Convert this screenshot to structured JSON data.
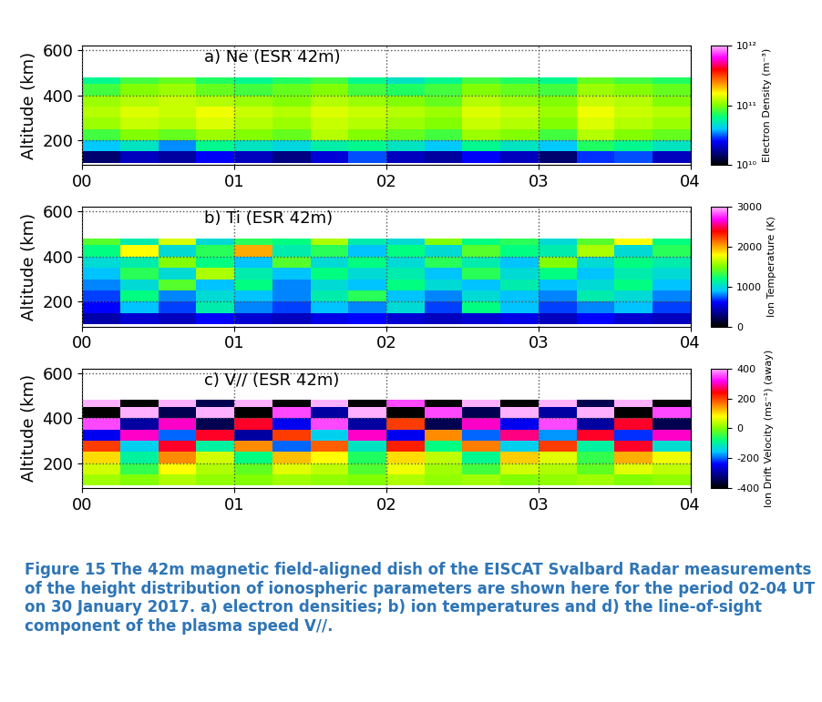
{
  "caption": "Figure 15 The 42m magnetic field-aligned dish of the EISCAT Svalbard Radar measurements of the height distribution of ionospheric parameters are shown here for the period 02-04 UT on 30 January 2017. a) electron densities; b) ion temperatures and d) the line-of-sight component of the plasma speed V//.",
  "chart_data": [
    {
      "type": "heatmap",
      "title": "a) Ne (ESR 42m)",
      "y_label": "Altitude (km)",
      "xlim": [
        0,
        4
      ],
      "xticks": [
        {
          "value": 0,
          "label": "00"
        },
        {
          "value": 1,
          "label": "01"
        },
        {
          "value": 2,
          "label": "02"
        },
        {
          "value": 3,
          "label": "03"
        },
        {
          "value": 4,
          "label": "04"
        }
      ],
      "ylim": [
        90,
        620
      ],
      "yticks": [
        200,
        400,
        600
      ],
      "grid": true,
      "x_edges": [
        0,
        0.25,
        0.5,
        0.75,
        1,
        1.25,
        1.5,
        1.75,
        2,
        2.25,
        2.5,
        2.75,
        3,
        3.25,
        3.5,
        3.75,
        4
      ],
      "y_edges": [
        100,
        150,
        200,
        250,
        300,
        350,
        400,
        450,
        480
      ],
      "cells": [
        [
          15000000000.0,
          20000000000.0,
          18000000000.0,
          25000000000.0,
          20000000000.0,
          16000000000.0,
          22000000000.0,
          30000000000.0,
          20000000000.0,
          18000000000.0,
          25000000000.0,
          20000000000.0,
          15000000000.0,
          28000000000.0,
          30000000000.0,
          20000000000.0
        ],
        [
          40000000000.0,
          50000000000.0,
          35000000000.0,
          60000000000.0,
          50000000000.0,
          45000000000.0,
          55000000000.0,
          60000000000.0,
          50000000000.0,
          40000000000.0,
          60000000000.0,
          50000000000.0,
          40000000000.0,
          70000000000.0,
          60000000000.0,
          50000000000.0
        ],
        [
          80000000000.0,
          100000000000.0,
          90000000000.0,
          110000000000.0,
          100000000000.0,
          90000000000.0,
          120000000000.0,
          100000000000.0,
          90000000000.0,
          80000000000.0,
          110000000000.0,
          100000000000.0,
          80000000000.0,
          120000000000.0,
          100000000000.0,
          90000000000.0
        ],
        [
          110000000000.0,
          130000000000.0,
          120000000000.0,
          140000000000.0,
          120000000000.0,
          110000000000.0,
          130000000000.0,
          120000000000.0,
          110000000000.0,
          100000000000.0,
          130000000000.0,
          120000000000.0,
          100000000000.0,
          140000000000.0,
          120000000000.0,
          110000000000.0
        ],
        [
          120000000000.0,
          140000000000.0,
          130000000000.0,
          150000000000.0,
          130000000000.0,
          120000000000.0,
          140000000000.0,
          130000000000.0,
          120000000000.0,
          110000000000.0,
          140000000000.0,
          130000000000.0,
          110000000000.0,
          150000000000.0,
          130000000000.0,
          120000000000.0
        ],
        [
          110000000000.0,
          120000000000.0,
          130000000000.0,
          120000000000.0,
          110000000000.0,
          100000000000.0,
          120000000000.0,
          110000000000.0,
          100000000000.0,
          90000000000.0,
          120000000000.0,
          110000000000.0,
          100000000000.0,
          130000000000.0,
          120000000000.0,
          100000000000.0
        ],
        [
          80000000000.0,
          100000000000.0,
          110000000000.0,
          90000000000.0,
          80000000000.0,
          90000000000.0,
          100000000000.0,
          80000000000.0,
          70000000000.0,
          80000000000.0,
          100000000000.0,
          90000000000.0,
          80000000000.0,
          110000000000.0,
          100000000000.0,
          90000000000.0
        ],
        [
          60000000000.0,
          80000000000.0,
          90000000000.0,
          70000000000.0,
          60000000000.0,
          70000000000.0,
          80000000000.0,
          60000000000.0,
          50000000000.0,
          60000000000.0,
          80000000000.0,
          70000000000.0,
          60000000000.0,
          90000000000.0,
          80000000000.0,
          70000000000.0
        ]
      ],
      "colorbar": {
        "label": "Electron Density (m⁻³)",
        "log": true,
        "range": [
          10000000000.0,
          1000000000000.0
        ],
        "ticks": [
          {
            "value": 10000000000.0,
            "label": "10¹⁰"
          },
          {
            "value": 100000000000.0,
            "label": "10¹¹"
          },
          {
            "value": 1000000000000.0,
            "label": "10¹²"
          }
        ]
      }
    },
    {
      "type": "heatmap",
      "title": "b) Ti (ESR 42m)",
      "y_label": "Altitude (km)",
      "xlim": [
        0,
        4
      ],
      "xticks": [
        {
          "value": 0,
          "label": "00"
        },
        {
          "value": 1,
          "label": "01"
        },
        {
          "value": 2,
          "label": "02"
        },
        {
          "value": 3,
          "label": "03"
        },
        {
          "value": 4,
          "label": "04"
        }
      ],
      "ylim": [
        90,
        620
      ],
      "yticks": [
        200,
        400,
        600
      ],
      "grid": true,
      "x_edges": [
        0,
        0.25,
        0.5,
        0.75,
        1,
        1.25,
        1.5,
        1.75,
        2,
        2.25,
        2.5,
        2.75,
        3,
        3.25,
        3.5,
        3.75,
        4
      ],
      "y_edges": [
        100,
        150,
        200,
        250,
        300,
        350,
        400,
        450,
        480
      ],
      "cells": [
        [
          400,
          500,
          450,
          600,
          500,
          450,
          550,
          600,
          500,
          450,
          500,
          550,
          450,
          600,
          500,
          450
        ],
        [
          600,
          900,
          700,
          1100,
          800,
          700,
          900,
          800,
          1000,
          700,
          1200,
          900,
          700,
          800,
          900,
          700
        ],
        [
          700,
          1200,
          800,
          1000,
          900,
          800,
          1100,
          1300,
          900,
          800,
          1000,
          900,
          800,
          1100,
          1000,
          800
        ],
        [
          800,
          1000,
          1400,
          900,
          1200,
          800,
          1000,
          900,
          1200,
          1000,
          900,
          1100,
          900,
          1000,
          1200,
          900
        ],
        [
          900,
          1300,
          1000,
          1600,
          1100,
          900,
          1200,
          1000,
          1100,
          900,
          1300,
          1000,
          1200,
          900,
          1100,
          1000
        ],
        [
          1000,
          1100,
          1500,
          1200,
          900,
          1400,
          1000,
          1200,
          1000,
          1300,
          1100,
          900,
          1500,
          1000,
          1200,
          1100
        ],
        [
          1200,
          1800,
          1000,
          1300,
          2000,
          1100,
          1300,
          900,
          1200,
          1000,
          1400,
          1200,
          1100,
          1600,
          1000,
          1300
        ],
        [
          1400,
          1100,
          1700,
          1000,
          1300,
          1200,
          1600,
          1100,
          1000,
          1500,
          1200,
          1300,
          1000,
          1400,
          1800,
          1200
        ]
      ],
      "colorbar": {
        "label": "Ion Temperature (K)",
        "log": false,
        "range": [
          0,
          3000
        ],
        "ticks": [
          0,
          1000,
          2000,
          3000
        ]
      }
    },
    {
      "type": "heatmap",
      "title": "c) V// (ESR 42m)",
      "y_label": "Altitude (km)",
      "xlim": [
        0,
        4
      ],
      "xticks": [
        {
          "value": 0,
          "label": "00"
        },
        {
          "value": 1,
          "label": "01"
        },
        {
          "value": 2,
          "label": "02"
        },
        {
          "value": 3,
          "label": "03"
        },
        {
          "value": 4,
          "label": "04"
        }
      ],
      "ylim": [
        90,
        620
      ],
      "yticks": [
        200,
        400,
        600
      ],
      "grid": true,
      "x_edges": [
        0,
        0.25,
        0.5,
        0.75,
        1,
        1.25,
        1.5,
        1.75,
        2,
        2.25,
        2.5,
        2.75,
        3,
        3.25,
        3.5,
        3.75,
        4
      ],
      "y_edges": [
        100,
        150,
        200,
        250,
        300,
        350,
        400,
        450,
        480
      ],
      "cells": [
        [
          20,
          0,
          30,
          10,
          0,
          20,
          10,
          0,
          30,
          10,
          20,
          0,
          10,
          20,
          0,
          10
        ],
        [
          50,
          -50,
          80,
          30,
          -20,
          60,
          40,
          -30,
          70,
          20,
          -40,
          50,
          30,
          -20,
          60,
          40
        ],
        [
          100,
          -100,
          150,
          50,
          -80,
          120,
          80,
          -60,
          100,
          40,
          -90,
          110,
          60,
          -50,
          130,
          70
        ],
        [
          200,
          -150,
          250,
          -100,
          150,
          -200,
          180,
          -120,
          220,
          -80,
          160,
          -150,
          200,
          -100,
          250,
          -130
        ],
        [
          -250,
          300,
          -200,
          250,
          -300,
          200,
          -150,
          300,
          -250,
          150,
          -200,
          280,
          -180,
          250,
          -220,
          300
        ],
        [
          350,
          -300,
          300,
          -350,
          250,
          -250,
          350,
          -300,
          200,
          -350,
          300,
          -250,
          350,
          -300,
          250,
          -350
        ],
        [
          -400,
          400,
          -350,
          400,
          -400,
          350,
          -300,
          400,
          -400,
          350,
          -350,
          400,
          -300,
          400,
          -400,
          350
        ],
        [
          400,
          -400,
          400,
          -350,
          400,
          -400,
          400,
          -400,
          350,
          -400,
          400,
          -400,
          400,
          -350,
          400,
          -400
        ]
      ],
      "colorbar": {
        "label": "Ion Drift Velocity (ms⁻¹) (away)",
        "log": false,
        "range": [
          -400,
          400
        ],
        "ticks": [
          -400,
          -200,
          0,
          200,
          400
        ]
      }
    }
  ]
}
